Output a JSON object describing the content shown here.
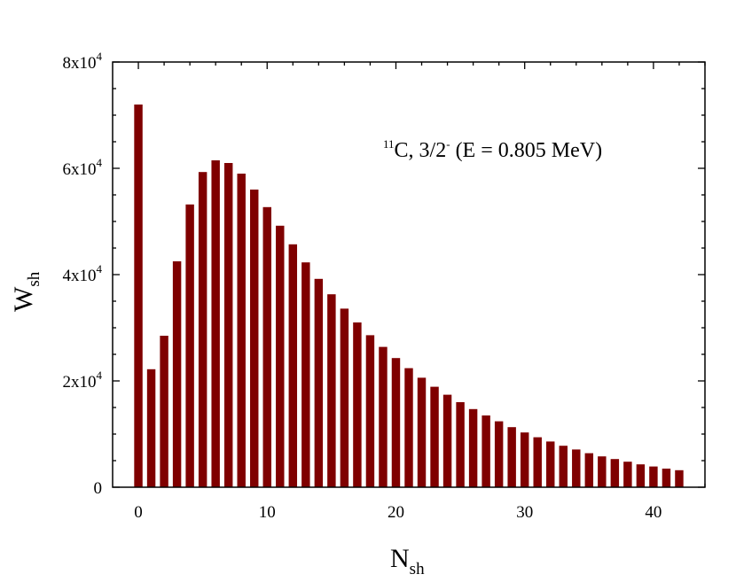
{
  "chart_data": {
    "type": "bar",
    "bar_color": "#7f0000",
    "x": [
      0,
      1,
      2,
      3,
      4,
      5,
      6,
      7,
      8,
      9,
      10,
      11,
      12,
      13,
      14,
      15,
      16,
      17,
      18,
      19,
      20,
      21,
      22,
      23,
      24,
      25,
      26,
      27,
      28,
      29,
      30,
      31,
      32,
      33,
      34,
      35,
      36,
      37,
      38,
      39,
      40,
      41,
      42
    ],
    "values": [
      72000,
      22200,
      28500,
      42500,
      53200,
      59300,
      61500,
      61000,
      59000,
      56000,
      52700,
      49200,
      45700,
      42300,
      39200,
      36300,
      33600,
      31000,
      28600,
      26400,
      24300,
      22400,
      20600,
      18900,
      17400,
      16000,
      14700,
      13500,
      12400,
      11300,
      10300,
      9400,
      8600,
      7800,
      7100,
      6400,
      5800,
      5300,
      4800,
      4300,
      3900,
      3500,
      3200
    ],
    "xlim": [
      -2,
      44
    ],
    "ylim": [
      0,
      80000
    ],
    "xticks": [
      {
        "value": 0,
        "label": "0"
      },
      {
        "value": 10,
        "label": "10"
      },
      {
        "value": 20,
        "label": "20"
      },
      {
        "value": 30,
        "label": "30"
      },
      {
        "value": 40,
        "label": "40"
      }
    ],
    "yticks": [
      {
        "value": 0,
        "mantissa": "0",
        "exponent": ""
      },
      {
        "value": 20000,
        "mantissa": "2x10",
        "exponent": "4"
      },
      {
        "value": 40000,
        "mantissa": "4x10",
        "exponent": "4"
      },
      {
        "value": 60000,
        "mantissa": "6x10",
        "exponent": "4"
      },
      {
        "value": 80000,
        "mantissa": "8x10",
        "exponent": "4"
      }
    ],
    "xlabel": {
      "main": "N",
      "sub": "sh"
    },
    "ylabel": {
      "main": "W",
      "sub": "sh"
    },
    "annotation": {
      "mass_number": "11",
      "text1": "C, 3/2",
      "parity": "-",
      "text2": " (E = 0.805 MeV)"
    }
  }
}
